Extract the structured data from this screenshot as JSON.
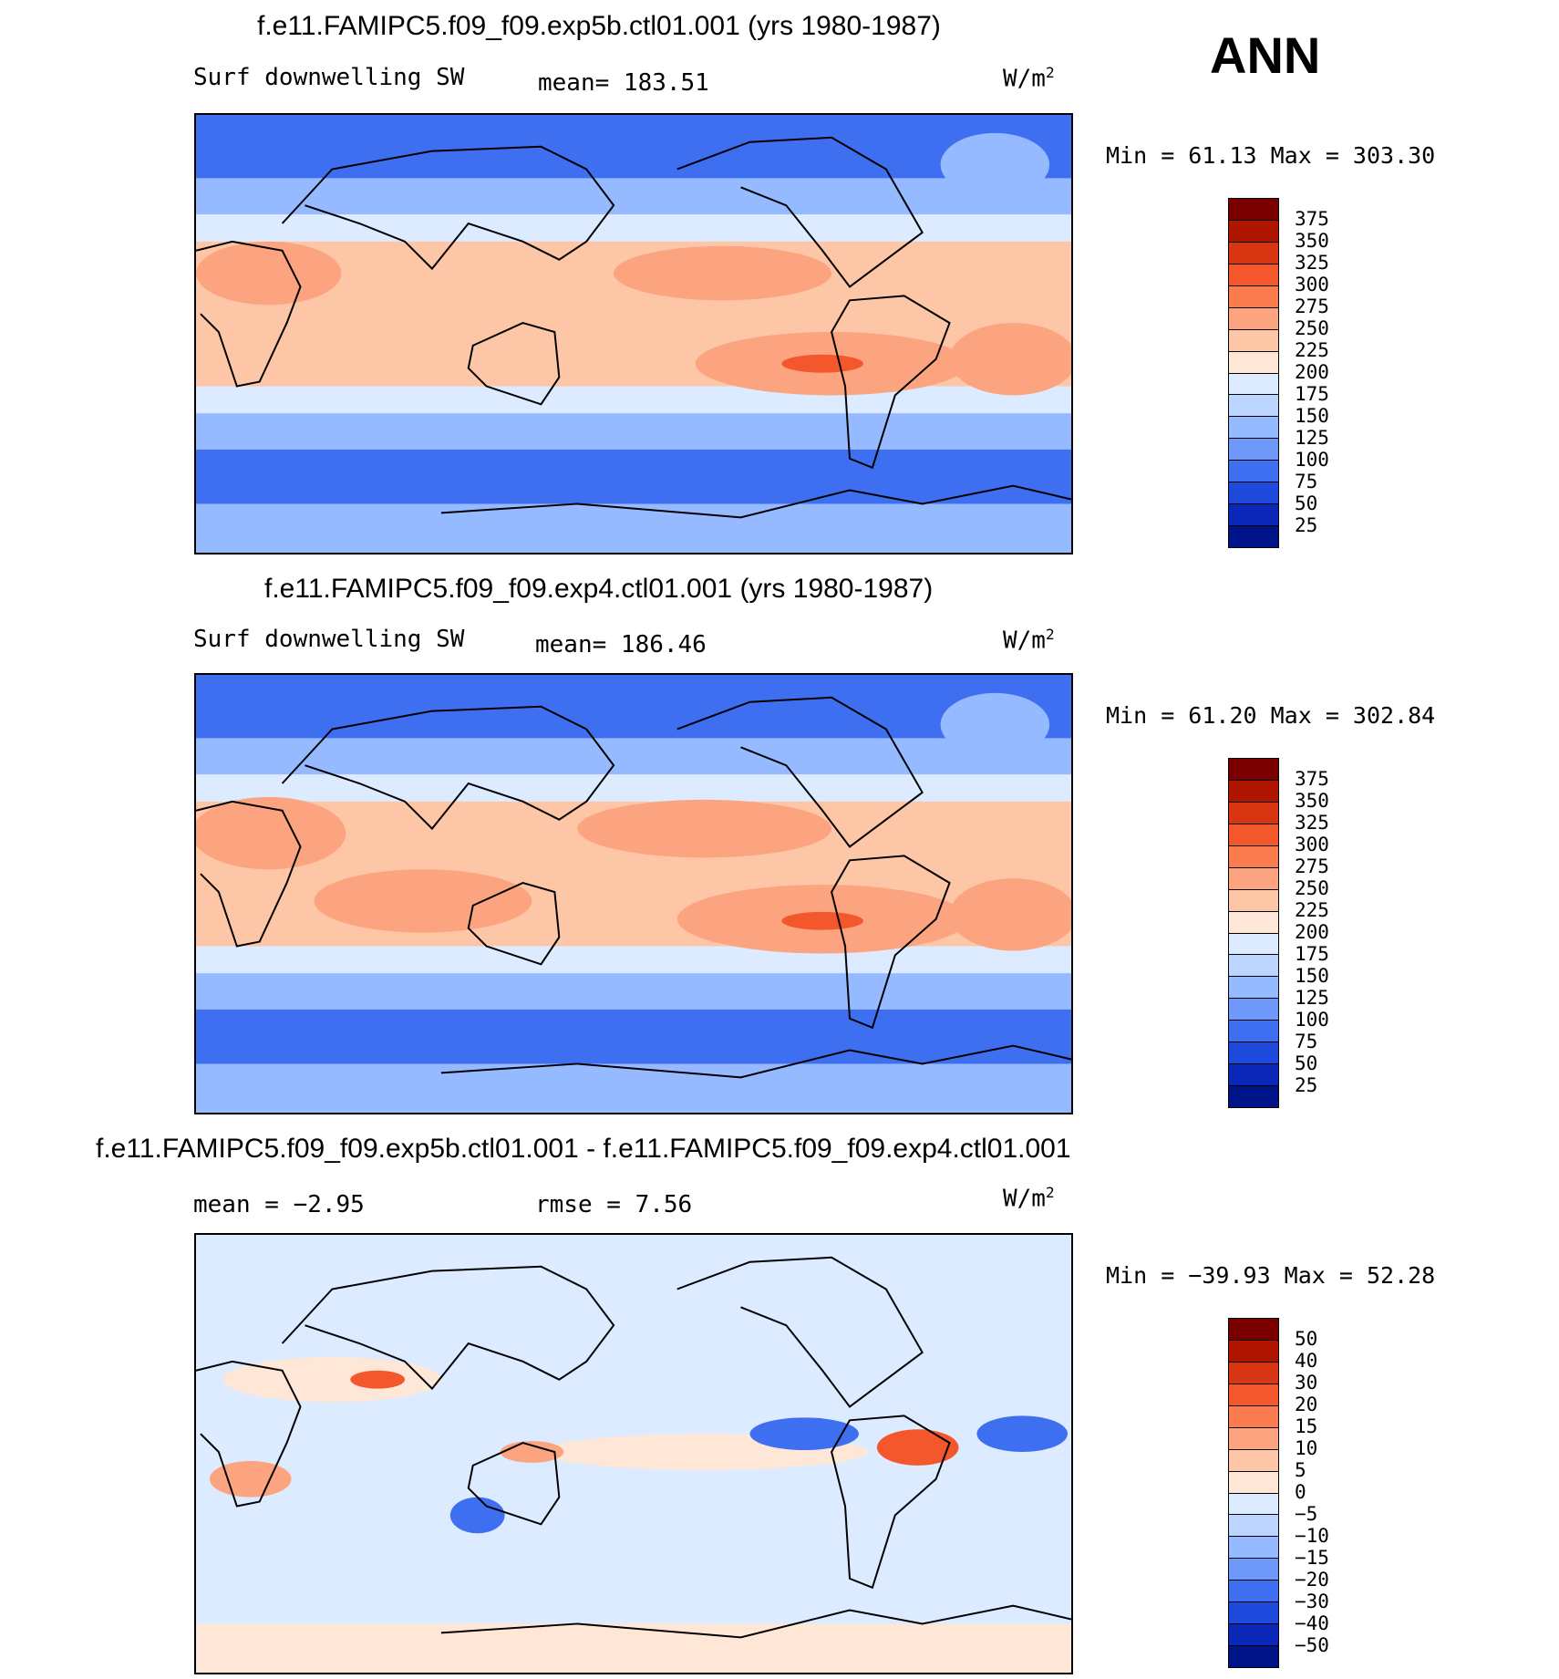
{
  "season": "ANN",
  "units_base": "W/m",
  "units_exp": "2",
  "panels": [
    {
      "title": "f.e11.FAMIPC5.f09_f09.exp5b.ctl01.001 (yrs 1980-1987)",
      "left_label": "Surf downwelling SW",
      "stat_label": "mean= 183.51",
      "min_max": "Min =   61.13 Max = 303.30",
      "colorbar": {
        "labels": [
          "375",
          "350",
          "325",
          "300",
          "275",
          "250",
          "225",
          "200",
          "175",
          "150",
          "125",
          "100",
          "75",
          "50",
          "25"
        ],
        "colors": [
          "#7a0000",
          "#b01500",
          "#d83512",
          "#f4572c",
          "#fb7d4f",
          "#fca47f",
          "#fdc6a7",
          "#fee7d6",
          "#dcebff",
          "#bbd5ff",
          "#96baff",
          "#6e99fb",
          "#3e6ff0",
          "#1e49dd",
          "#0a27b8",
          "#001489"
        ]
      }
    },
    {
      "title": "f.e11.FAMIPC5.f09_f09.exp4.ctl01.001 (yrs 1980-1987)",
      "left_label": "Surf downwelling SW",
      "stat_label": "mean= 186.46",
      "min_max": "Min =   61.20 Max = 302.84",
      "colorbar": {
        "labels": [
          "375",
          "350",
          "325",
          "300",
          "275",
          "250",
          "225",
          "200",
          "175",
          "150",
          "125",
          "100",
          "75",
          "50",
          "25"
        ],
        "colors": [
          "#7a0000",
          "#b01500",
          "#d83512",
          "#f4572c",
          "#fb7d4f",
          "#fca47f",
          "#fdc6a7",
          "#fee7d6",
          "#dcebff",
          "#bbd5ff",
          "#96baff",
          "#6e99fb",
          "#3e6ff0",
          "#1e49dd",
          "#0a27b8",
          "#001489"
        ]
      }
    },
    {
      "title": "f.e11.FAMIPC5.f09_f09.exp5b.ctl01.001 - f.e11.FAMIPC5.f09_f09.exp4.ctl01.001",
      "left_label": "mean =   −2.95",
      "stat_label": "rmse =    7.56",
      "min_max": "Min = −39.93 Max =  52.28",
      "colorbar": {
        "labels": [
          "50",
          "40",
          "30",
          "20",
          "15",
          "10",
          "5",
          "0",
          "−5",
          "−10",
          "−15",
          "−20",
          "−30",
          "−40",
          "−50"
        ],
        "colors": [
          "#7a0000",
          "#b01500",
          "#d83512",
          "#f4572c",
          "#fb7d4f",
          "#fca47f",
          "#fdc6a7",
          "#fee7d6",
          "#dcebff",
          "#bbd5ff",
          "#96baff",
          "#6e99fb",
          "#3e6ff0",
          "#1e49dd",
          "#0a27b8",
          "#001489"
        ]
      }
    }
  ],
  "colors": {
    "ocean_high_lat": "#3e6ff0",
    "ocean_mid": "#96baff",
    "ocean_sub": "#dcebff",
    "tropics_warm": "#fdc6a7",
    "tropics_hot": "#fca47f",
    "hotspot": "#f4572c",
    "diff_background": "#dcebff",
    "diff_positive": "#fee7d6",
    "coastline": "#000000"
  }
}
